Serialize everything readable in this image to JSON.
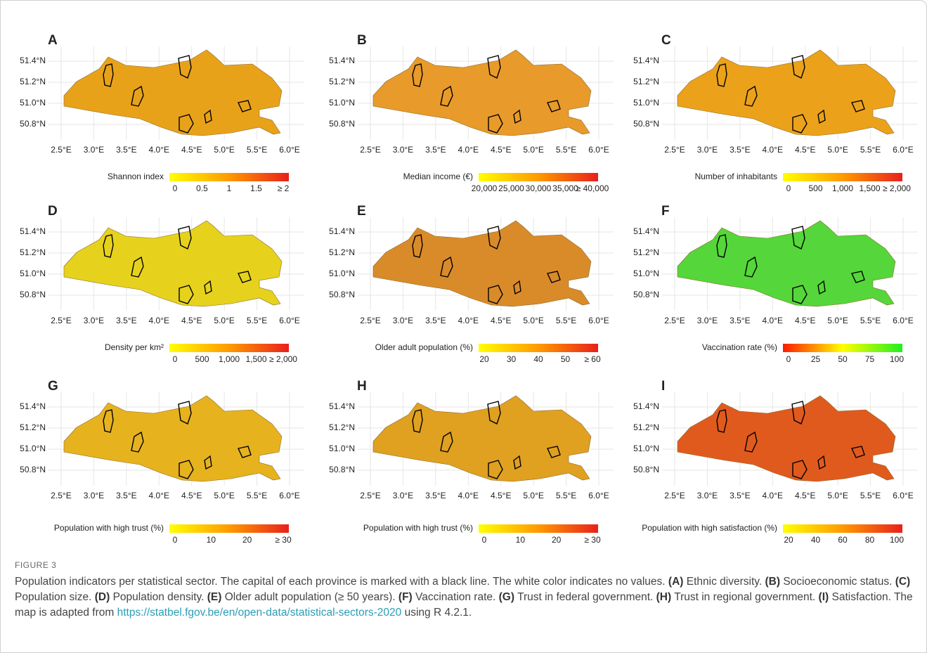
{
  "panels": [
    {
      "label": "A",
      "yticks": [
        "51.4°N",
        "51.2°N",
        "51.0°N",
        "50.8°N"
      ],
      "xticks": [
        "2.5°E",
        "3.0°E",
        "3.5°E",
        "4.0°E",
        "4.5°E",
        "5.0°E",
        "5.5°E",
        "6.0°E"
      ],
      "legend_title": "Shannon index",
      "legend_ticks": [
        "0",
        "0.5",
        "1",
        "1.5",
        "≥ 2"
      ],
      "colors": [
        "#ffff00",
        "#ff9a00",
        "#e8201c"
      ],
      "map_color": "#e8a21a"
    },
    {
      "label": "B",
      "yticks": [
        "51.4°N",
        "51.2°N",
        "51.0°N",
        "50.8°N"
      ],
      "xticks": [
        "2.5°E",
        "3.0°E",
        "3.5°E",
        "4.0°E",
        "4.5°E",
        "5.0°E",
        "5.5°E",
        "6.0°E"
      ],
      "legend_title": "Median income (€)",
      "legend_ticks": [
        "20,000",
        "25,000",
        "30,000",
        "35,000",
        "≥ 40,000"
      ],
      "colors": [
        "#ffff00",
        "#ff9a00",
        "#e8201c"
      ],
      "map_color": "#e89a2a"
    },
    {
      "label": "C",
      "yticks": [
        "51.4°N",
        "51.2°N",
        "51.0°N",
        "50.8°N"
      ],
      "xticks": [
        "2.5°E",
        "3.0°E",
        "3.5°E",
        "4.0°E",
        "4.5°E",
        "5.0°E",
        "5.5°E",
        "6.0°E"
      ],
      "legend_title": "Number of inhabitants",
      "legend_ticks": [
        "0",
        "500",
        "1,000",
        "1,500",
        "≥ 2,000"
      ],
      "colors": [
        "#ffff00",
        "#ff9a00",
        "#e8201c"
      ],
      "map_color": "#eba21a"
    },
    {
      "label": "D",
      "yticks": [
        "51.4°N",
        "51.2°N",
        "51.0°N",
        "50.8°N"
      ],
      "xticks": [
        "2.5°E",
        "3.0°E",
        "3.5°E",
        "4.0°E",
        "4.5°E",
        "5.0°E",
        "5.5°E",
        "6.0°E"
      ],
      "legend_title": "Density per km²",
      "legend_ticks": [
        "0",
        "500",
        "1,000",
        "1,500",
        "≥ 2,000"
      ],
      "colors": [
        "#ffff00",
        "#ff9a00",
        "#e8201c"
      ],
      "map_color": "#e6d21c"
    },
    {
      "label": "E",
      "yticks": [
        "51.4°N",
        "51.2°N",
        "51.0°N",
        "50.8°N"
      ],
      "xticks": [
        "2.5°E",
        "3.0°E",
        "3.5°E",
        "4.0°E",
        "4.5°E",
        "5.0°E",
        "5.5°E",
        "6.0°E"
      ],
      "legend_title": "Older adult population (%)",
      "legend_ticks": [
        "20",
        "30",
        "40",
        "50",
        "≥ 60"
      ],
      "colors": [
        "#ffff00",
        "#ff9a00",
        "#e8201c"
      ],
      "map_color": "#d98b2a"
    },
    {
      "label": "F",
      "yticks": [
        "51.4°N",
        "51.2°N",
        "51.0°N",
        "50.8°N"
      ],
      "xticks": [
        "2.5°E",
        "3.0°E",
        "3.5°E",
        "4.0°E",
        "4.5°E",
        "5.0°E",
        "5.5°E",
        "6.0°E"
      ],
      "legend_title": "Vaccination rate (%)",
      "legend_ticks": [
        "0",
        "25",
        "50",
        "75",
        "100"
      ],
      "colors": [
        "#ff1a00",
        "#ffff00",
        "#22ee22"
      ],
      "map_color": "#55d63a"
    },
    {
      "label": "G",
      "yticks": [
        "51.4°N",
        "51.2°N",
        "51.0°N",
        "50.8°N"
      ],
      "xticks": [
        "2.5°E",
        "3.0°E",
        "3.5°E",
        "4.0°E",
        "4.5°E",
        "5.0°E",
        "5.5°E",
        "6.0°E"
      ],
      "legend_title": "Population with high trust (%)",
      "legend_ticks": [
        "0",
        "10",
        "20",
        "≥ 30"
      ],
      "colors": [
        "#ffff00",
        "#ff9a00",
        "#e8201c"
      ],
      "map_color": "#e6b21e"
    },
    {
      "label": "H",
      "yticks": [
        "51.4°N",
        "51.2°N",
        "51.0°N",
        "50.8°N"
      ],
      "xticks": [
        "2.5°E",
        "3.0°E",
        "3.5°E",
        "4.0°E",
        "4.5°E",
        "5.0°E",
        "5.5°E",
        "6.0°E"
      ],
      "legend_title": "Population with high trust (%)",
      "legend_ticks": [
        "0",
        "10",
        "20",
        "≥ 30"
      ],
      "colors": [
        "#ffff00",
        "#ff9a00",
        "#e8201c"
      ],
      "map_color": "#e0a020"
    },
    {
      "label": "I",
      "yticks": [
        "51.4°N",
        "51.2°N",
        "51.0°N",
        "50.8°N"
      ],
      "xticks": [
        "2.5°E",
        "3.0°E",
        "3.5°E",
        "4.0°E",
        "4.5°E",
        "5.0°E",
        "5.5°E",
        "6.0°E"
      ],
      "legend_title": "Population with high satisfaction (%)",
      "legend_ticks": [
        "20",
        "40",
        "60",
        "80",
        "100"
      ],
      "colors": [
        "#ffff00",
        "#ff9a00",
        "#e8201c"
      ],
      "map_color": "#e05a1e"
    }
  ],
  "caption": {
    "label": "FIGURE 3",
    "intro": "Population indicators per statistical sector. The capital of each province is marked with a black line. The white color indicates no values.",
    "items": [
      {
        "key": "(A)",
        "text": "Ethnic diversity."
      },
      {
        "key": "(B)",
        "text": "Socioeconomic status."
      },
      {
        "key": "(C)",
        "text": "Population size."
      },
      {
        "key": "(D)",
        "text": "Population density."
      },
      {
        "key": "(E)",
        "text": "Older adult population (≥ 50 years)."
      },
      {
        "key": "(F)",
        "text": "Vaccination rate."
      },
      {
        "key": "(G)",
        "text": "Trust in federal government."
      },
      {
        "key": "(H)",
        "text": "Trust in regional government."
      },
      {
        "key": "(I)",
        "text": "Satisfaction."
      }
    ],
    "source_prefix": "The map is adapted from",
    "link": "https://statbel.fgov.be/en/open-data/statistical-sectors-2020",
    "source_suffix": "using R 4.2.1."
  }
}
